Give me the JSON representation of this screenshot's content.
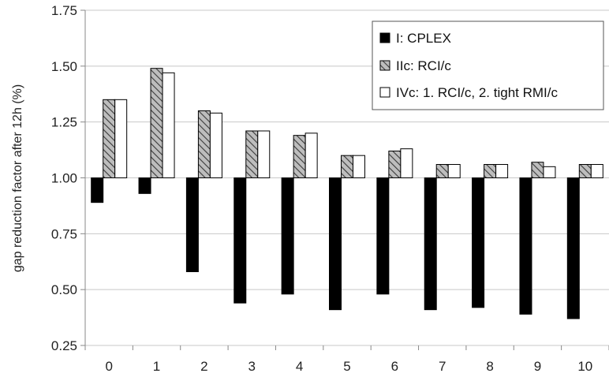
{
  "chart_data": {
    "type": "bar",
    "ylabel": "gap reduction factor after 12h (%)",
    "xlabel": "",
    "ylim": [
      0.25,
      1.75
    ],
    "yticks": [
      "0.25",
      "0.50",
      "0.75",
      "1.00",
      "1.25",
      "1.50",
      "1.75"
    ],
    "baseline": 1.0,
    "categories": [
      "0",
      "1",
      "2",
      "3",
      "4",
      "5",
      "6",
      "7",
      "8",
      "9",
      "10"
    ],
    "grid": "horizontal",
    "legend_position": "top-right",
    "series": [
      {
        "name": "I: CPLEX",
        "style": "solid",
        "color": "#000000",
        "values": [
          0.89,
          0.93,
          0.58,
          0.44,
          0.48,
          0.41,
          0.48,
          0.41,
          0.42,
          0.39,
          0.37
        ]
      },
      {
        "name": "IIc: RCI/c",
        "style": "hatched",
        "color": "#a8a8a8",
        "values": [
          1.35,
          1.49,
          1.3,
          1.21,
          1.19,
          1.1,
          1.12,
          1.06,
          1.06,
          1.07,
          1.06
        ]
      },
      {
        "name": "IVc: 1. RCI/c, 2. tight RMI/c",
        "style": "open",
        "color": "#ffffff",
        "values": [
          1.35,
          1.47,
          1.29,
          1.21,
          1.2,
          1.1,
          1.13,
          1.06,
          1.06,
          1.05,
          1.06
        ]
      }
    ]
  }
}
